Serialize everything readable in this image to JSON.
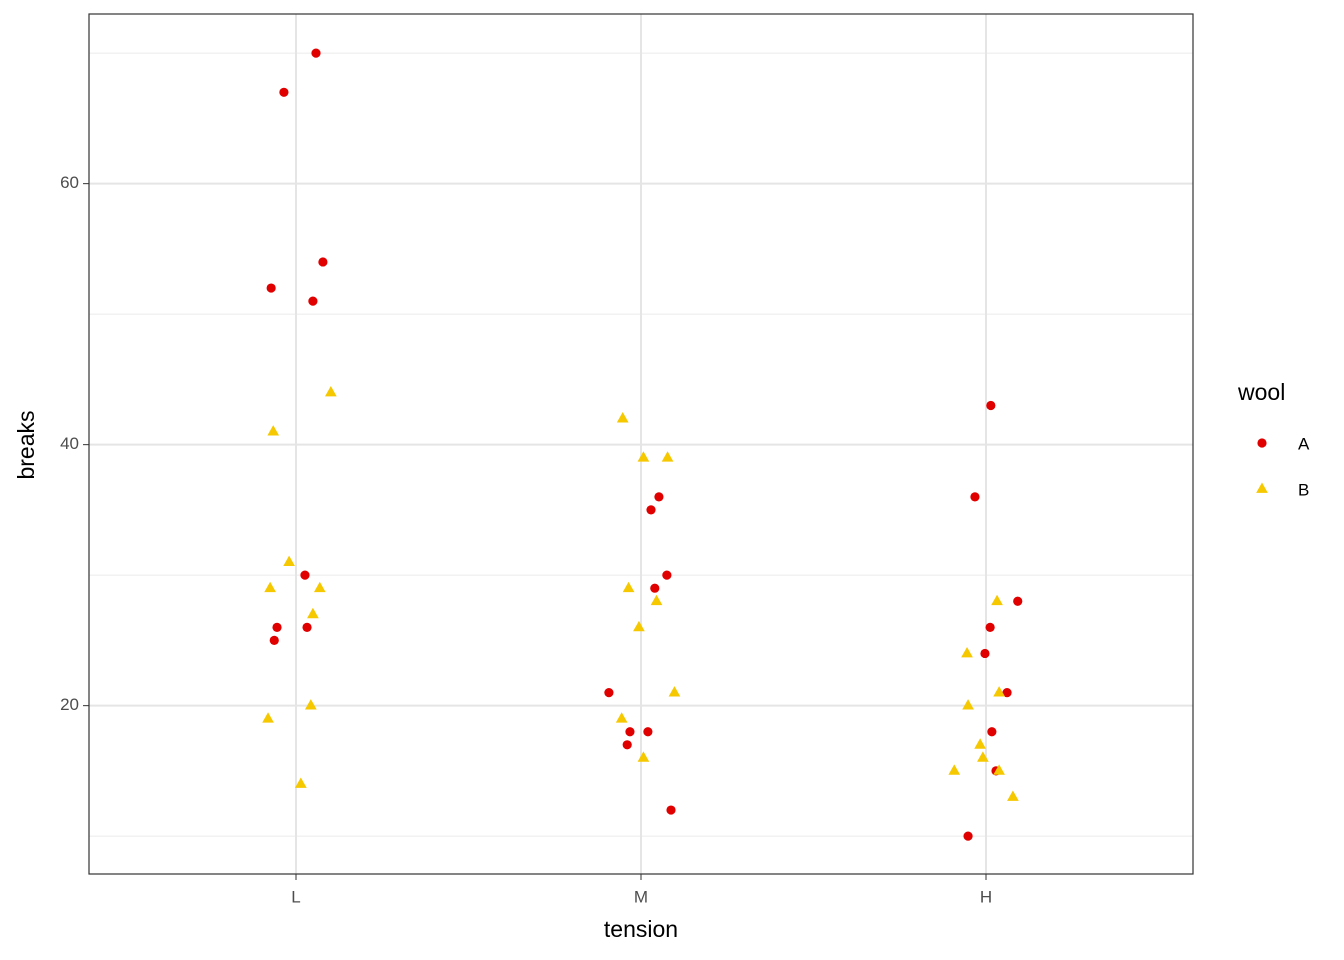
{
  "chart_data": {
    "type": "scatter",
    "x_label": "tension",
    "y_label": "breaks",
    "legend_title": "wool",
    "xlim": [
      0.4,
      3.6
    ],
    "xticks": [
      {
        "value": 1,
        "label": "L"
      },
      {
        "value": 2,
        "label": "M"
      },
      {
        "value": 3,
        "label": "H"
      }
    ],
    "ylim": [
      7.1,
      73.0
    ],
    "yticks": [
      20,
      40,
      60
    ],
    "minor_yticks": [
      10,
      30,
      50,
      70
    ],
    "grid": true,
    "legend_position": "right",
    "series": [
      {
        "name": "A",
        "color": "#e00000",
        "marker": "circle",
        "x": [
          1.058,
          0.965,
          1.078,
          0.928,
          1.049,
          1.026,
          0.945,
          1.032,
          0.937,
          2.052,
          2.029,
          2.075,
          2.04,
          1.907,
          1.968,
          2.02,
          1.96,
          2.087,
          3.014,
          2.968,
          3.092,
          3.012,
          2.997,
          3.061,
          3.017,
          3.029,
          2.948
        ],
        "values": [
          70,
          67,
          54,
          52,
          51,
          30,
          26,
          26,
          25,
          36,
          35,
          30,
          29,
          21,
          18,
          18,
          17,
          12,
          43,
          36,
          28,
          26,
          24,
          21,
          18,
          15,
          10
        ]
      },
      {
        "name": "B",
        "color": "#f5c800",
        "marker": "triangle",
        "x": [
          1.101,
          0.934,
          0.98,
          0.925,
          1.069,
          1.049,
          1.043,
          0.919,
          1.014,
          1.947,
          2.007,
          2.077,
          1.964,
          2.045,
          1.994,
          2.097,
          1.944,
          2.007,
          3.032,
          2.945,
          3.038,
          2.948,
          2.983,
          2.991,
          2.908,
          3.038,
          3.078
        ],
        "values": [
          44,
          41,
          31,
          29,
          29,
          27,
          20,
          19,
          14,
          42,
          39,
          39,
          29,
          28,
          26,
          21,
          19,
          16,
          28,
          24,
          21,
          20,
          17,
          16,
          15,
          15,
          13
        ]
      }
    ]
  }
}
